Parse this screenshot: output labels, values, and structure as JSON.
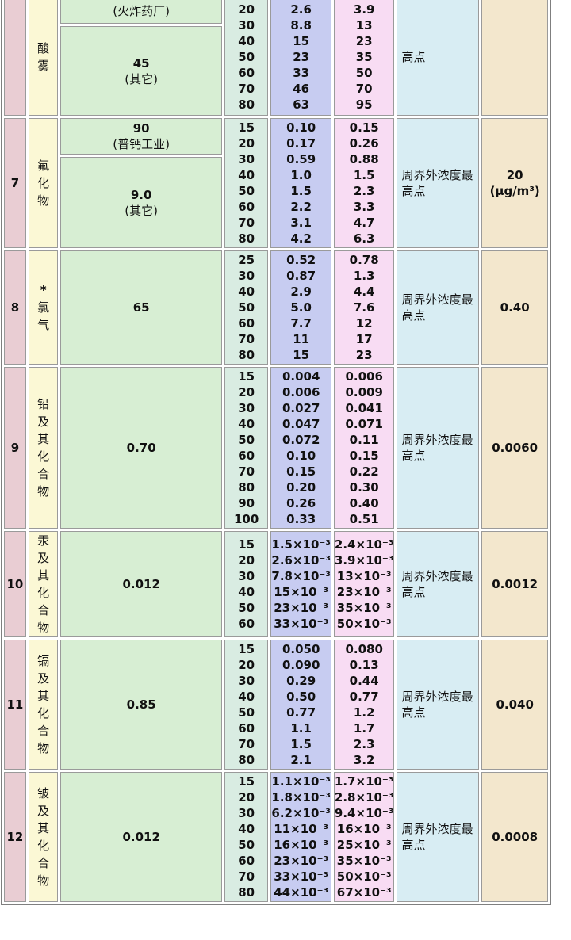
{
  "page": {
    "background": "#ffffff",
    "border_color": "#9a9a9a"
  },
  "colors": {
    "serial_col": "#e9cdd3",
    "pollutant_col": "#fbf8d5",
    "limit_col": "#d7eed3",
    "height_col": "#d9ece2",
    "rate_a_col": "#c7ccf1",
    "rate_b_col": "#f8dcf3",
    "monitor_col": "#d8edf3",
    "conc_col": "#f3e7cd"
  },
  "table": {
    "rows": [
      {
        "no": "",
        "name_lines": [
          "酸",
          "雾"
        ],
        "limit": {
          "type": "split",
          "cells": [
            {
              "lines": [
                "(火炸药厂)"
              ],
              "h": 30
            },
            {
              "lines": [
                "45",
                "(其它)"
              ]
            }
          ]
        },
        "heights": [
          "20",
          "30",
          "40",
          "50",
          "60",
          "70",
          "80"
        ],
        "rate_a": [
          "2.6",
          "8.8",
          "15",
          "23",
          "33",
          "46",
          "63"
        ],
        "rate_b": [
          "3.9",
          "13",
          "23",
          "35",
          "50",
          "70",
          "95"
        ],
        "monitor_lines": [
          "高点"
        ],
        "conc_lines": [],
        "cut_top": true
      },
      {
        "no": "7",
        "name_lines": [
          "氟",
          "化",
          "物"
        ],
        "limit": {
          "type": "split",
          "cells": [
            {
              "lines": [
                "90",
                "(普钙工业)"
              ],
              "h": 44
            },
            {
              "lines": [
                "9.0",
                "(其它)"
              ]
            }
          ]
        },
        "heights": [
          "15",
          "20",
          "30",
          "40",
          "50",
          "60",
          "70",
          "80"
        ],
        "rate_a": [
          "0.10",
          "0.17",
          "0.59",
          "1.0",
          "1.5",
          "2.2",
          "3.1",
          "4.2"
        ],
        "rate_b": [
          "0.15",
          "0.26",
          "0.88",
          "1.5",
          "2.3",
          "3.3",
          "4.7",
          "6.3"
        ],
        "monitor_lines": [
          "周界外浓度最",
          "高点"
        ],
        "conc_lines": [
          "20",
          "(μg/m³)"
        ]
      },
      {
        "no": "8",
        "name_lines": [
          "*",
          "氯",
          "气"
        ],
        "limit": {
          "type": "single",
          "lines": [
            "65"
          ]
        },
        "heights": [
          "25",
          "30",
          "40",
          "50",
          "60",
          "70",
          "80"
        ],
        "rate_a": [
          "0.52",
          "0.87",
          "2.9",
          "5.0",
          "7.7",
          "11",
          "15"
        ],
        "rate_b": [
          "0.78",
          "1.3",
          "4.4",
          "7.6",
          "12",
          "17",
          "23"
        ],
        "monitor_lines": [
          "周界外浓度最",
          "高点"
        ],
        "conc_lines": [
          "0.40"
        ]
      },
      {
        "no": "9",
        "name_lines": [
          "铅",
          "及",
          "其",
          "化",
          "合",
          "物"
        ],
        "limit": {
          "type": "single",
          "lines": [
            "0.70"
          ]
        },
        "heights": [
          "15",
          "20",
          "30",
          "40",
          "50",
          "60",
          "70",
          "80",
          "90",
          "100"
        ],
        "rate_a": [
          "0.004",
          "0.006",
          "0.027",
          "0.047",
          "0.072",
          "0.10",
          "0.15",
          "0.20",
          "0.26",
          "0.33"
        ],
        "rate_b": [
          "0.006",
          "0.009",
          "0.041",
          "0.071",
          "0.11",
          "0.15",
          "0.22",
          "0.30",
          "0.40",
          "0.51"
        ],
        "monitor_lines": [
          "周界外浓度最",
          "高点"
        ],
        "conc_lines": [
          "0.0060"
        ]
      },
      {
        "no": "10",
        "name_lines": [
          "汞",
          "及",
          "其",
          "化",
          "合",
          "物"
        ],
        "limit": {
          "type": "single",
          "lines": [
            "0.012"
          ]
        },
        "heights": [
          "15",
          "20",
          "30",
          "40",
          "50",
          "60"
        ],
        "rate_a": [
          "1.5×10⁻³",
          "2.6×10⁻³",
          "7.8×10⁻³",
          "15×10⁻³",
          "23×10⁻³",
          "33×10⁻³"
        ],
        "rate_b": [
          "2.4×10⁻³",
          "3.9×10⁻³",
          "13×10⁻³",
          "23×10⁻³",
          "35×10⁻³",
          "50×10⁻³"
        ],
        "monitor_lines": [
          "周界外浓度最",
          "高点"
        ],
        "conc_lines": [
          "0.0012"
        ]
      },
      {
        "no": "11",
        "name_lines": [
          "镉",
          "及",
          "其",
          "化",
          "合",
          "物"
        ],
        "limit": {
          "type": "single",
          "lines": [
            "0.85"
          ]
        },
        "heights": [
          "15",
          "20",
          "30",
          "40",
          "50",
          "60",
          "70",
          "80"
        ],
        "rate_a": [
          "0.050",
          "0.090",
          "0.29",
          "0.50",
          "0.77",
          "1.1",
          "1.5",
          "2.1"
        ],
        "rate_b": [
          "0.080",
          "0.13",
          "0.44",
          "0.77",
          "1.2",
          "1.7",
          "2.3",
          "3.2"
        ],
        "monitor_lines": [
          "周界外浓度最",
          "高点"
        ],
        "conc_lines": [
          "0.040"
        ]
      },
      {
        "no": "12",
        "name_lines": [
          "铍",
          "及",
          "其",
          "化",
          "合",
          "物"
        ],
        "limit": {
          "type": "single",
          "lines": [
            "0.012"
          ]
        },
        "heights": [
          "15",
          "20",
          "30",
          "40",
          "50",
          "60",
          "70",
          "80"
        ],
        "rate_a": [
          "1.1×10⁻³",
          "1.8×10⁻³",
          "6.2×10⁻³",
          "11×10⁻³",
          "16×10⁻³",
          "23×10⁻³",
          "33×10⁻³",
          "44×10⁻³"
        ],
        "rate_b": [
          "1.7×10⁻³",
          "2.8×10⁻³",
          "9.4×10⁻³",
          "16×10⁻³",
          "25×10⁻³",
          "35×10⁻³",
          "50×10⁻³",
          "67×10⁻³"
        ],
        "monitor_lines": [
          "周界外浓度最",
          "高点"
        ],
        "conc_lines": [
          "0.0008"
        ]
      }
    ]
  }
}
